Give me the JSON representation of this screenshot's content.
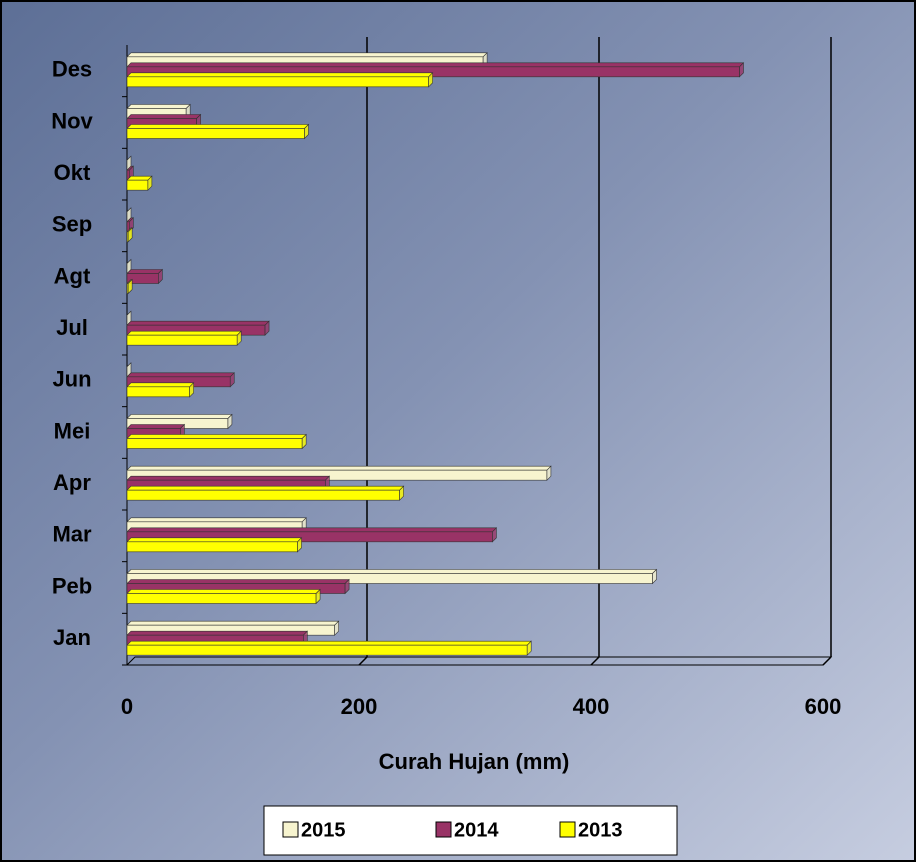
{
  "chart_data": {
    "type": "bar",
    "orientation": "horizontal",
    "x_label": "Curah Hujan (mm)",
    "categories": [
      "Jan",
      "Peb",
      "Mar",
      "Apr",
      "Mei",
      "Jun",
      "Jul",
      "Agt",
      "Sep",
      "Okt",
      "Nov",
      "Des"
    ],
    "series": [
      {
        "name": "2015",
        "color": "#f7f4cf",
        "values": [
          179,
          453,
          151,
          362,
          87,
          0,
          0,
          0,
          0,
          0,
          51,
          307
        ]
      },
      {
        "name": "2014",
        "color": "#993366",
        "values": [
          152,
          188,
          315,
          171,
          46,
          89,
          119,
          27,
          2,
          2,
          60,
          528
        ]
      },
      {
        "name": "2013",
        "color": "#ffff00",
        "values": [
          345,
          163,
          147,
          235,
          151,
          54,
          95,
          1,
          1,
          18,
          153,
          260
        ]
      }
    ],
    "xlim": [
      0,
      600
    ],
    "xticks": [
      0,
      200,
      400,
      600
    ],
    "grid": true,
    "legend": "bottom"
  }
}
